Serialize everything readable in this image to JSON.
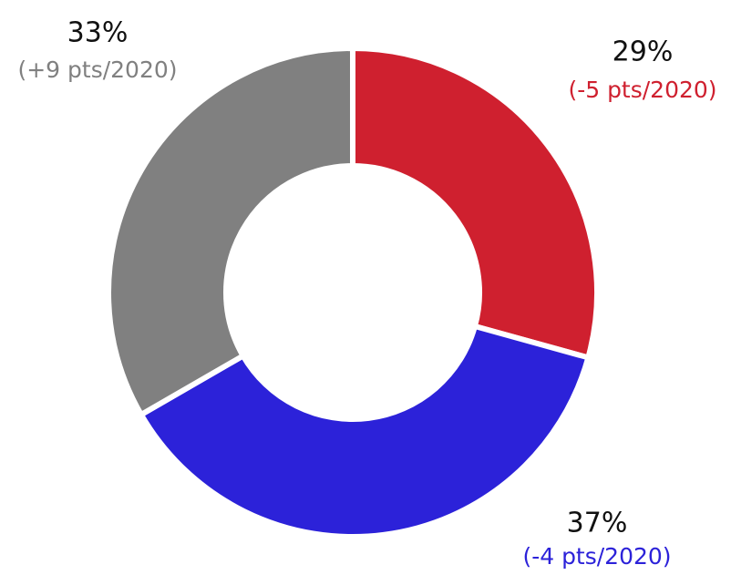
{
  "chart_data": {
    "type": "pie",
    "donut": true,
    "values": [
      29,
      37,
      33
    ],
    "value_labels": [
      "29%",
      "37%",
      "33%"
    ],
    "annotations": [
      "(-5 pts/2020)",
      "(-4 pts/2020)",
      "(+9 pts/2020)"
    ],
    "colors": [
      "#cf202f",
      "#2c22d9",
      "#808080"
    ]
  }
}
